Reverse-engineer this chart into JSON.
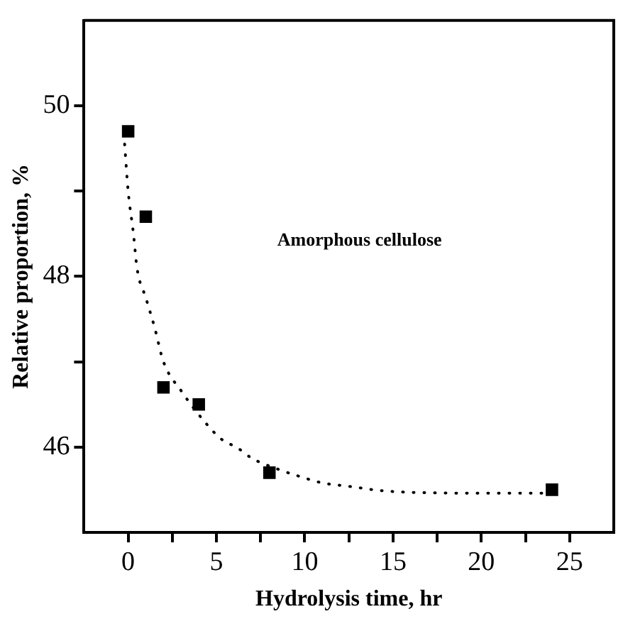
{
  "chart_data": {
    "type": "scatter",
    "xlabel": "Hydrolysis time, hr",
    "ylabel": "Relative proportion, %",
    "annotations": [
      "Amorphous cellulose"
    ],
    "xlim": [
      -2.5,
      27.5
    ],
    "xticks": [
      0,
      {
        "value": 2.5,
        "label": null
      },
      5,
      {
        "value": 7.5,
        "label": null
      },
      10,
      {
        "value": 12.5,
        "label": null
      },
      15,
      {
        "value": 17.5,
        "label": null
      },
      20,
      {
        "value": 22.5,
        "label": null
      },
      25
    ],
    "ylim": [
      45,
      51
    ],
    "yticks": [
      46,
      {
        "value": 47,
        "label": null
      },
      48,
      {
        "value": 49,
        "label": null
      },
      50
    ],
    "grid": false,
    "legend": false,
    "series": [
      {
        "type": "scatter",
        "color": "#000000",
        "marker": "square",
        "x": [
          0,
          1,
          2,
          4,
          8,
          24
        ],
        "values": [
          49.7,
          48.7,
          46.7,
          46.5,
          45.7,
          45.5
        ]
      },
      {
        "type": "line",
        "color": "#000000",
        "line_style": "dotted",
        "marker": "none",
        "x": [
          -0.2,
          0,
          0.3,
          0.5,
          1,
          1.5,
          2,
          3,
          4.4,
          5.3,
          6.2,
          7,
          8.5,
          9.8,
          11,
          12.5,
          14.3,
          16,
          20,
          24
        ],
        "values": [
          49.55,
          49.0,
          48.5,
          48.1,
          47.75,
          47.4,
          47.0,
          46.66,
          46.28,
          46.09,
          45.99,
          45.87,
          45.74,
          45.65,
          45.58,
          45.54,
          45.49,
          45.47,
          45.46,
          45.46
        ]
      }
    ]
  }
}
